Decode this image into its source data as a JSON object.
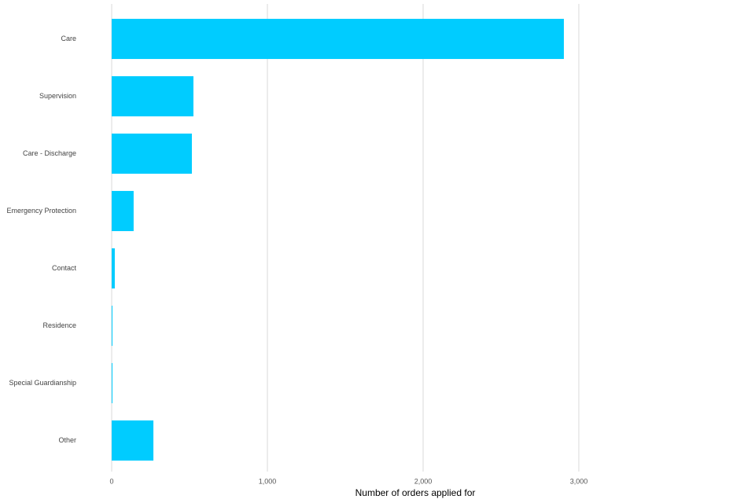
{
  "chart_data": {
    "type": "hbar",
    "x_label": "Number of orders applied for",
    "categories": [
      "Care",
      "Supervision",
      "Care - Discharge",
      "Emergency Protection",
      "Contact",
      "Residence",
      "Special Guardianship",
      "Other"
    ],
    "values": [
      2904,
      525,
      515,
      141,
      20,
      5,
      5,
      268
    ],
    "color": "#00ccff",
    "xlim": [
      0,
      4130
    ],
    "xticks": [
      0,
      {
        "value": 1000,
        "label": "1,000"
      },
      {
        "value": 2000,
        "label": "2,000"
      },
      {
        "value": 3000,
        "label": "3,000"
      }
    ],
    "grid": true
  }
}
